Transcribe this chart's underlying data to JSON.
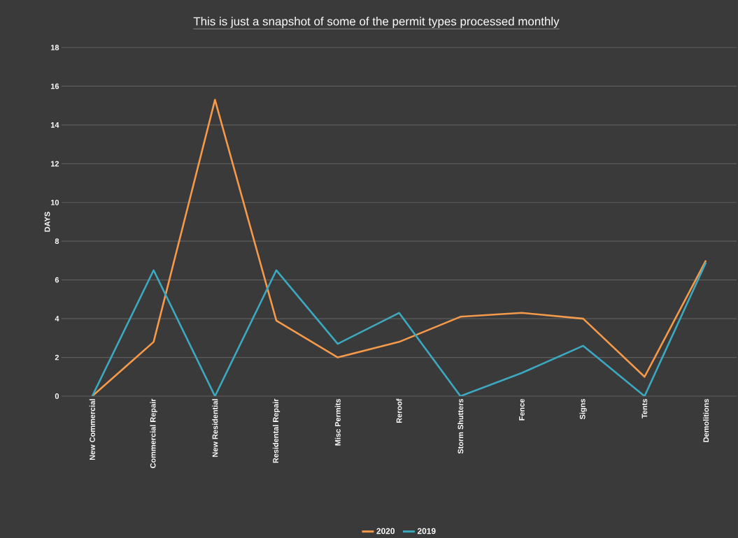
{
  "chart_data": {
    "type": "line",
    "title": "This is just a snapshot of some of the permit types processed monthly",
    "ylabel": "DAYS",
    "categories": [
      "New Commercial",
      "Commercial Repair",
      "New Residential",
      "Residental Repair",
      "Misc Permits",
      "Reroof",
      "Storm Shutters",
      "Fence",
      "Signs",
      "Tents",
      "Demolitions"
    ],
    "series": [
      {
        "name": "2020",
        "color": "#f59a4a",
        "values": [
          0,
          2.8,
          15.3,
          3.9,
          2.0,
          2.8,
          4.1,
          4.3,
          4.0,
          1.0,
          7.0
        ]
      },
      {
        "name": "2019",
        "color": "#3ca9c0",
        "values": [
          0,
          6.5,
          0,
          6.5,
          2.7,
          4.3,
          0,
          1.2,
          2.6,
          0,
          6.9
        ]
      }
    ],
    "ylim": [
      0,
      18
    ],
    "yticks": [
      0,
      2,
      4,
      6,
      8,
      10,
      12,
      14,
      16,
      18
    ],
    "grid": "y",
    "legend": "bottom",
    "marker": "none",
    "line_style": "solid"
  }
}
